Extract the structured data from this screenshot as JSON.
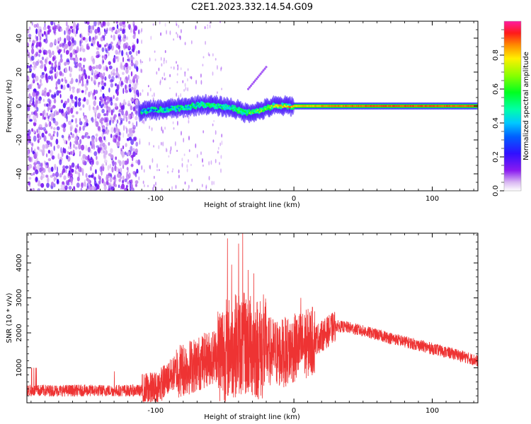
{
  "title": "C2E1.2023.332.14.54.G09",
  "chart_data": [
    {
      "type": "heatmap",
      "xlabel": "Height of straight line (km)",
      "ylabel": "Frequency (Hz)",
      "xlim": [
        -193,
        133
      ],
      "ylim": [
        -50,
        50
      ],
      "xticks": [
        -100,
        0,
        100
      ],
      "yticks": [
        -40,
        -20,
        0,
        20,
        40
      ],
      "colorbar": {
        "label": "Normalized spectral amplitude",
        "range": [
          0,
          1
        ],
        "ticks": [
          0.0,
          0.2,
          0.4,
          0.6,
          0.8
        ]
      },
      "signal_line": [
        {
          "x": -110,
          "y": -3,
          "amp": 0.3
        },
        {
          "x": -95,
          "y": -2,
          "amp": 0.4
        },
        {
          "x": -80,
          "y": -1,
          "amp": 0.45
        },
        {
          "x": -65,
          "y": 1,
          "amp": 0.5
        },
        {
          "x": -55,
          "y": 0,
          "amp": 0.5
        },
        {
          "x": -45,
          "y": -1,
          "amp": 0.5
        },
        {
          "x": -35,
          "y": -4,
          "amp": 0.55
        },
        {
          "x": -25,
          "y": -3,
          "amp": 0.6
        },
        {
          "x": -15,
          "y": 0,
          "amp": 0.7
        },
        {
          "x": 0,
          "y": 0,
          "amp": 0.8
        },
        {
          "x": 20,
          "y": 0,
          "amp": 0.85
        },
        {
          "x": 60,
          "y": 0,
          "amp": 0.9
        },
        {
          "x": 133,
          "y": 0,
          "amp": 0.9
        }
      ],
      "annotation_streak": {
        "x": [
          -33,
          -20
        ],
        "y": [
          10,
          23
        ]
      }
    },
    {
      "type": "line",
      "color": "#ee3333",
      "xlabel": "Height of straight line (km)",
      "ylabel": "SNR (10 * v/v)",
      "xlim": [
        -193,
        133
      ],
      "ylim": [
        0,
        4850
      ],
      "xticks": [
        -100,
        0,
        100
      ],
      "yticks": [
        1000,
        2000,
        3000,
        4000
      ],
      "trend": {
        "x": [
          -193,
          -110,
          -100,
          -85,
          -70,
          -60,
          -50,
          -40,
          -30,
          -20,
          -10,
          0,
          10,
          20,
          30,
          40,
          60,
          80,
          100,
          120,
          133
        ],
        "y": [
          350,
          350,
          400,
          900,
          1100,
          1300,
          1500,
          1700,
          1600,
          1500,
          1400,
          1550,
          1700,
          1900,
          2200,
          2150,
          1950,
          1750,
          1550,
          1350,
          1200
        ]
      },
      "spikes": [
        {
          "x": -48,
          "y": 4700
        },
        {
          "x": -40,
          "y": 4550
        },
        {
          "x": -37,
          "y": 4850
        },
        {
          "x": -45,
          "y": 3950
        },
        {
          "x": -33,
          "y": 3800
        },
        {
          "x": -29,
          "y": 3700
        },
        {
          "x": -22,
          "y": 3100
        },
        {
          "x": 5,
          "y": 3000
        }
      ]
    }
  ]
}
